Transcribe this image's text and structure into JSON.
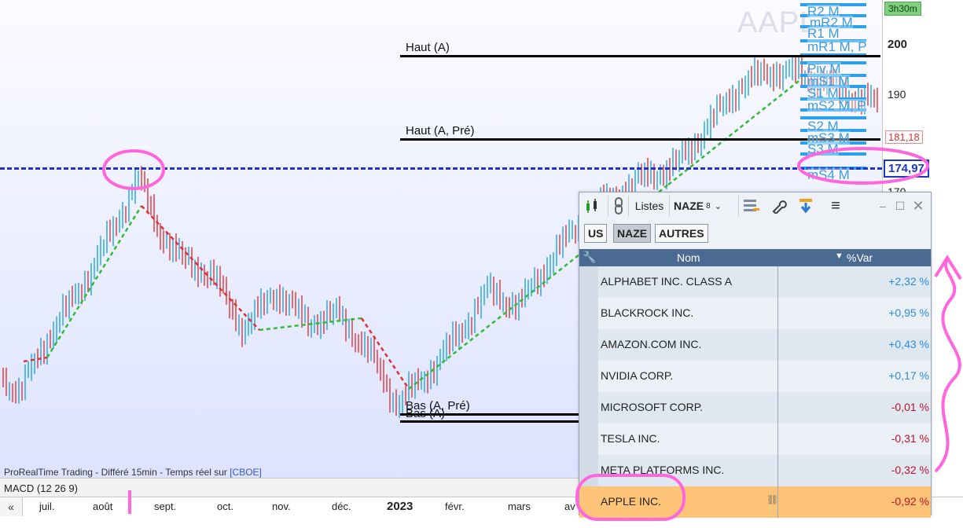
{
  "chart": {
    "watermark": "AAPL",
    "timeframe": "3h30m",
    "price_levels": [
      "200",
      "190",
      "170"
    ],
    "last_price": "174,97",
    "prev_close_price": "181,18",
    "status": "ProRealTime Trading - Différé 15min - Temps réel sur ",
    "status_link": "[CBOE]",
    "indicator": "MACD (12 26 9)",
    "months": [
      "juil.",
      "août",
      "sept.",
      "oct.",
      "nov.",
      "déc.",
      "2023",
      "févr.",
      "mars",
      "av"
    ],
    "levels": [
      {
        "label": "Haut (A)"
      },
      {
        "label": "Haut (A, Pré)"
      },
      {
        "label": "Bas (A, Pré)"
      },
      {
        "label": "Bas (A)"
      }
    ],
    "pivot_labels": [
      "R2 M",
      "mR2 M",
      "R1 M",
      "mR1 M, P",
      "Piv M",
      "mS1 M",
      "S1 M",
      "mS2 M, P",
      "S2 M",
      "mS3 M",
      "S3 M",
      "mS4 M"
    ],
    "colors": {
      "dashed_line": "#2233cc",
      "annotation": "#ff66dd",
      "up": "#2aa8e8",
      "down": "#e04040"
    }
  },
  "watchlist": {
    "toolbar": {
      "lists_label": "Listes",
      "list_name": "NAZE",
      "list_count": "8"
    },
    "tabs": [
      {
        "label": "US",
        "active": false
      },
      {
        "label": "NAZE",
        "active": true
      },
      {
        "label": "AUTRES",
        "active": false
      }
    ],
    "columns": {
      "name": "Nom",
      "change": "%Var"
    },
    "rows": [
      {
        "name": "ALPHABET INC. CLASS A",
        "change": "+2,32 %"
      },
      {
        "name": "BLACKROCK INC.",
        "change": "+0,95 %"
      },
      {
        "name": "AMAZON.COM INC.",
        "change": "+0,43 %"
      },
      {
        "name": "NVIDIA CORP.",
        "change": "+0,17 %"
      },
      {
        "name": "MICROSOFT CORP.",
        "change": "-0,01 %"
      },
      {
        "name": "TESLA INC.",
        "change": "-0,31 %"
      },
      {
        "name": "META PLATFORMS INC.",
        "change": "-0,32 %"
      },
      {
        "name": "APPLE INC.",
        "change": "-0,92 %"
      }
    ]
  }
}
